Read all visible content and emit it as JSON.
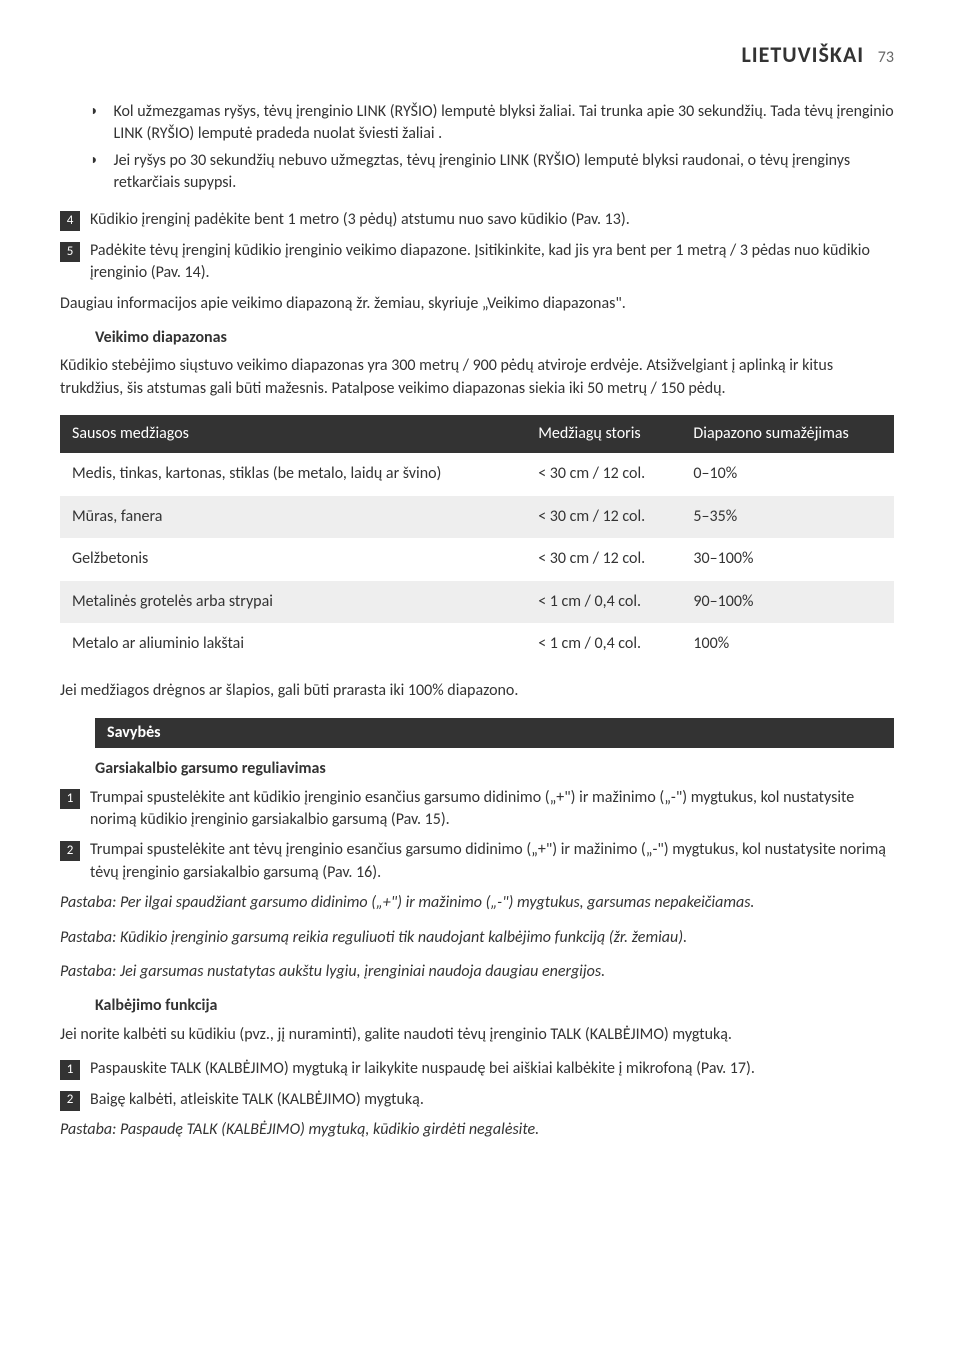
{
  "header": {
    "title": "LIETUVIŠKAI",
    "page": "73"
  },
  "bullets": [
    "Kol užmezgamas ryšys, tėvų įrenginio LINK (RYŠIO) lemputė blyksi žaliai. Tai trunka apie 30 sekundžių. Tada tėvų įrenginio LINK (RYŠIO) lemputė pradeda nuolat šviesti žaliai .",
    "Jei ryšys po 30 sekundžių nebuvo užmegztas, tėvų įrenginio LINK (RYŠIO) lemputė blyksi raudonai, o tėvų įrenginys retkarčiais supypsi."
  ],
  "steps_a": [
    {
      "n": "4",
      "t": "Kūdikio įrenginį padėkite bent 1 metro (3 pėdų) atstumu nuo savo kūdikio (Pav. 13)."
    },
    {
      "n": "5",
      "t": "Padėkite tėvų įrenginį kūdikio įrenginio veikimo diapazone. Įsitikinkite, kad jis yra bent per 1 metrą / 3 pėdas nuo kūdikio įrenginio (Pav. 14)."
    }
  ],
  "para1": "Daugiau informacijos apie veikimo diapazoną žr. žemiau, skyriuje „Veikimo diapazonas\".",
  "h1": "Veikimo diapazonas",
  "para2": "Kūdikio stebėjimo siųstuvo veikimo diapazonas yra 300 metrų / 900 pėdų atviroje erdvėje. Atsižvelgiant į aplinką ir kitus trukdžius, šis atstumas gali būti mažesnis. Patalpose veikimo diapazonas siekia iki 50 metrų / 150 pėdų.",
  "table": {
    "headers": [
      "Sausos medžiagos",
      "Medžiagų storis",
      "Diapazono sumažėjimas"
    ],
    "rows": [
      [
        "Medis, tinkas, kartonas, stiklas (be metalo, laidų ar švino)",
        "< 30 cm / 12 col.",
        "0–10%"
      ],
      [
        "Mūras, fanera",
        "< 30 cm / 12 col.",
        "5–35%"
      ],
      [
        "Gelžbetonis",
        "< 30 cm / 12 col.",
        "30–100%"
      ],
      [
        "Metalinės grotelės arba strypai",
        "< 1 cm / 0,4 col.",
        "90–100%"
      ],
      [
        "Metalo ar aliuminio lakštai",
        "< 1 cm / 0,4 col.",
        "100%"
      ]
    ]
  },
  "para3": "Jei medžiagos drėgnos ar šlapios, gali būti prarasta iki 100% diapazono.",
  "section1": "Savybės",
  "h2": "Garsiakalbio garsumo reguliavimas",
  "steps_b": [
    {
      "n": "1",
      "t": "Trumpai spustelėkite ant kūdikio įrenginio esančius garsumo didinimo („+\") ir mažinimo („-\") mygtukus, kol nustatysite norimą kūdikio įrenginio garsiakalbio garsumą (Pav. 15)."
    },
    {
      "n": "2",
      "t": "Trumpai spustelėkite ant tėvų įrenginio esančius garsumo didinimo („+\") ir mažinimo („-\") mygtukus, kol nustatysite norimą tėvų įrenginio garsiakalbio garsumą (Pav. 16)."
    }
  ],
  "note1": "Pastaba: Per ilgai spaudžiant garsumo didinimo („+\") ir mažinimo („-\") mygtukus, garsumas nepakeičiamas.",
  "note2": "Pastaba: Kūdikio įrenginio garsumą reikia reguliuoti tik naudojant kalbėjimo funkciją (žr. žemiau).",
  "note3": "Pastaba: Jei garsumas nustatytas aukštu lygiu, įrenginiai naudoja daugiau energijos.",
  "h3": "Kalbėjimo funkcija",
  "para4": "Jei norite kalbėti su kūdikiu (pvz., jį nuraminti), galite naudoti tėvų įrenginio TALK (KALBĖJIMO) mygtuką.",
  "steps_c": [
    {
      "n": "1",
      "t": "Paspauskite TALK (KALBĖJIMO) mygtuką ir laikykite nuspaudę bei aiškiai kalbėkite į mikrofoną (Pav. 17)."
    },
    {
      "n": "2",
      "t": "Baigę kalbėti, atleiskite TALK (KALBĖJIMO) mygtuką."
    }
  ],
  "note4": "Pastaba: Paspaudę TALK (KALBĖJIMO) mygtuką, kūdikio girdėti negalėsite."
}
